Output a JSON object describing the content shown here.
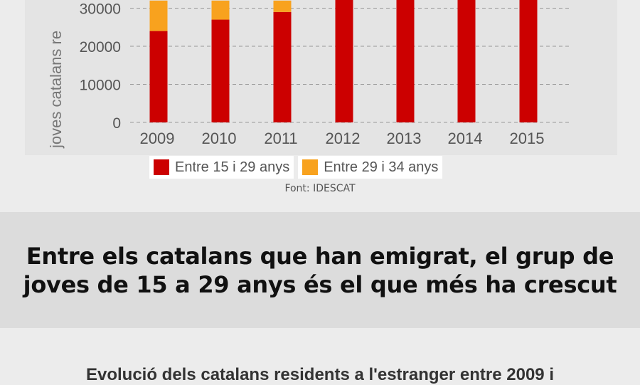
{
  "chart_data": {
    "type": "bar",
    "stacked": true,
    "categories": [
      "2009",
      "2010",
      "2011",
      "2012",
      "2013",
      "2014",
      "2015"
    ],
    "series": [
      {
        "name": "Entre 15 i 29 anys",
        "color": "#cc0000",
        "values": [
          24000,
          27000,
          29000,
          null,
          null,
          null,
          null
        ]
      },
      {
        "name": "Entre 29 i 34 anys",
        "color": "#f8a21e",
        "values": [
          8000,
          5000,
          3000,
          null,
          null,
          null,
          null
        ]
      }
    ],
    "yticks": [
      0,
      10000,
      20000,
      30000
    ],
    "ylabel": "joves catalans re",
    "ylim": [
      0,
      33000
    ],
    "grid": true,
    "legend": "bottom"
  },
  "source": "Font: IDESCAT",
  "headline": {
    "line1": "Entre els catalans que han emigrat, el grup de",
    "line2": "joves de 15 a 29 anys és el que més ha crescut"
  },
  "subheadline": "Evolució dels catalans residents a l'estranger entre 2009 i"
}
